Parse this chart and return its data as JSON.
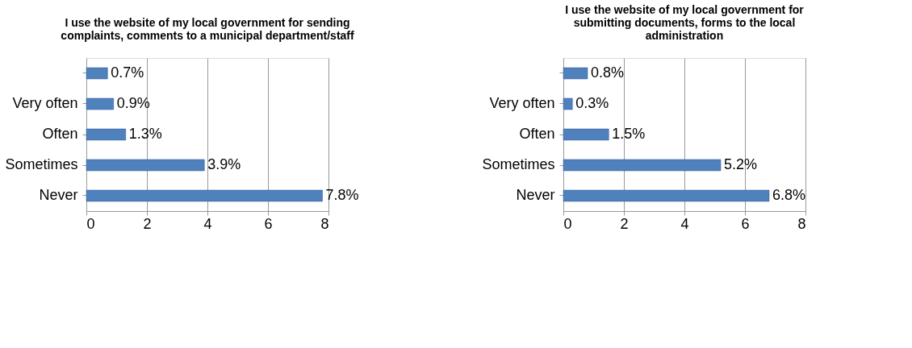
{
  "chart_data": [
    {
      "type": "bar",
      "orientation": "horizontal",
      "title": "I use the website of my local government for sending complaints, comments to a municipal department/staff",
      "categories": [
        null,
        "Very often",
        "Often",
        "Sometimes",
        "Never"
      ],
      "values": [
        0.7,
        0.9,
        1.3,
        3.9,
        7.8
      ],
      "value_labels": [
        "0.7%",
        "0.9%",
        "1.3%",
        "3.9%",
        "7.8%"
      ],
      "color": "#4f81bd",
      "xlim": [
        0,
        8
      ],
      "xticks": [
        0,
        2,
        4,
        6,
        8
      ],
      "grid": "x"
    },
    {
      "type": "bar",
      "orientation": "horizontal",
      "title": "I use the website of my local government for submitting documents, forms to the local administration",
      "categories": [
        null,
        "Very often",
        "Often",
        "Sometimes",
        "Never"
      ],
      "values": [
        0.8,
        0.3,
        1.5,
        5.2,
        6.8
      ],
      "value_labels": [
        "0.8%",
        "0.3%",
        "1.5%",
        "5.2%",
        "6.8%"
      ],
      "color": "#4f81bd",
      "xlim": [
        0,
        8
      ],
      "xticks": [
        0,
        2,
        4,
        6,
        8
      ],
      "grid": "x"
    }
  ]
}
